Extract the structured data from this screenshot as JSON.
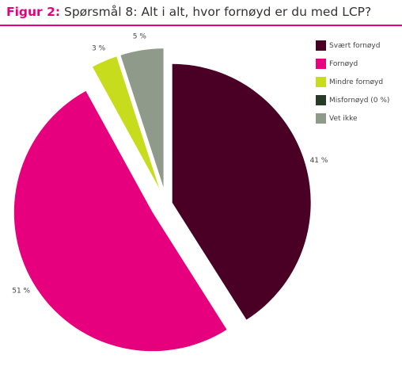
{
  "title_prefix": "Figur 2:",
  "title_text": " Spørsmål 8: Alt i alt, hvor fornøyd er du med LCP?",
  "accent_color": "#e6007e",
  "chart_data": {
    "type": "pie",
    "title": "Figur 2: Spørsmål 8: Alt i alt, hvor fornøyd er du med LCP?",
    "legend_position": "top-right",
    "slices": [
      {
        "label": "Svært fornøyd",
        "value": 41,
        "value_label": "41 %",
        "color": "#4a0025"
      },
      {
        "label": "Fornøyd",
        "value": 51,
        "value_label": "51 %",
        "color": "#e6007e"
      },
      {
        "label": "Mindre fornøyd",
        "value": 3,
        "value_label": "3 %",
        "color": "#c8dc1e"
      },
      {
        "label": "Misfornøyd (0 %)",
        "value": 0,
        "value_label": "",
        "color": "#283a28"
      },
      {
        "label": "Vet ikke",
        "value": 5,
        "value_label": "5 %",
        "color": "#8f9a8a"
      }
    ]
  }
}
